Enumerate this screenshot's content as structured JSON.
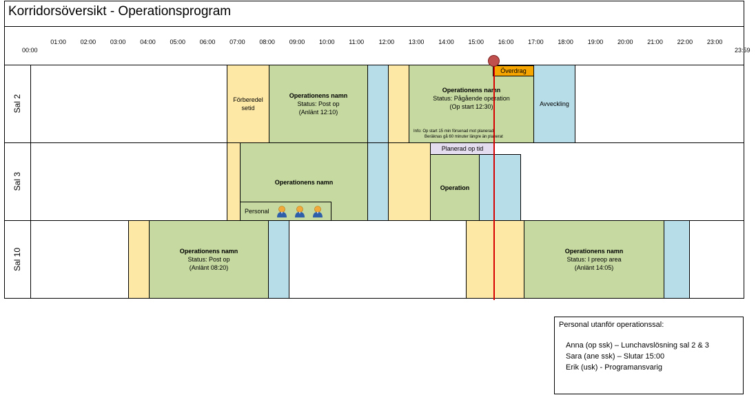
{
  "title": "Korridorsöversikt - Operationsprogram",
  "hours": [
    "00:00",
    "01:00",
    "02:00",
    "03:00",
    "04:00",
    "05:00",
    "06:00",
    "07:00",
    "08:00",
    "09:00",
    "10:00",
    "11:00",
    "12:00",
    "13:00",
    "14:00",
    "15:00",
    "16:00",
    "17:00",
    "18:00",
    "19:00",
    "20:00",
    "21:00",
    "22:00",
    "23:00",
    "23:59"
  ],
  "rooms": [
    "Sal 2",
    "Sal 3",
    "Sal 10"
  ],
  "sal2": {
    "prep_label": "Förberedel\nsetid",
    "op1_name": "Operationens namn",
    "op1_status": "Status: Post op",
    "op1_arrived": "(Anlänt 12:10)",
    "op2_name": "Operationens namn",
    "op2_status": "Status: Pågående operation",
    "op2_start": "(Op start 12:30)",
    "op2_info1": "Info: Op start 15 min försenad mot planerad",
    "op2_info2": "Beräknas gå 60 minuter längre än planerat",
    "overdrag": "Överdrag",
    "wind_down": "Avveckling"
  },
  "sal3": {
    "op1_name": "Operationens namn",
    "staff_label": "Personal",
    "planned_label": "Planerad op tid",
    "op2_name": "Operation"
  },
  "sal10": {
    "op1_name": "Operationens namn",
    "op1_status": "Status: Post op",
    "op1_arrived": "(Anlänt 08:20)",
    "op2_name": "Operationens namn",
    "op2_status": "Status: I preop area",
    "op2_arrived": "(Anlänt 14:05)"
  },
  "legend": {
    "title": "Personal utanför operationssal:",
    "lines": [
      "Anna (op ssk) – Lunchavslösning sal 2 & 3",
      "Sara (ane ssk) – Slutar 15:00",
      "Erik (usk) - Programansvarig"
    ]
  },
  "colors": {
    "prep": "#fde8a6",
    "op": "#c5d9a0",
    "cleanup": "#b7dde8",
    "overdrag": "#f7a600",
    "now_line": "#d60000",
    "planned": "#e4dcef"
  },
  "icons": [
    "person-icon"
  ]
}
